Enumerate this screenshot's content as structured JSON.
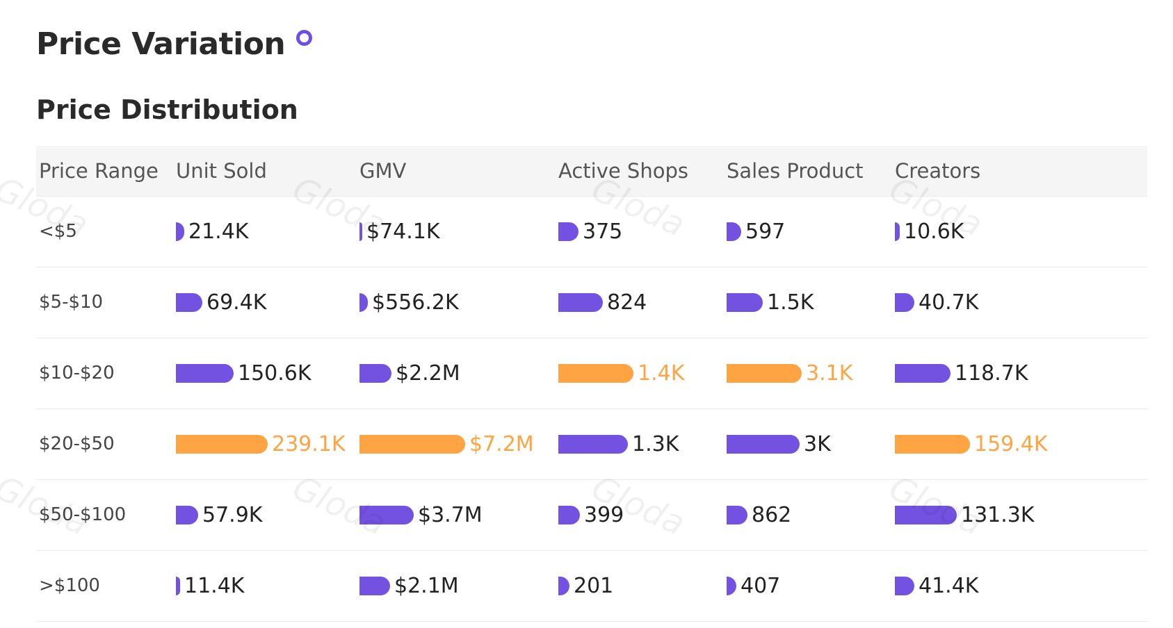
{
  "page": {
    "title": "Price Variation",
    "subtitle": "Price Distribution",
    "watermark": "Gloda"
  },
  "colors": {
    "bar_default": "#7352e2",
    "bar_highlight": "#ffa442",
    "text_highlight": "#ffa442"
  },
  "chart_data": {
    "type": "table",
    "columns": [
      "Price Range",
      "Unit Sold",
      "GMV",
      "Active Shops",
      "Sales Product",
      "Creators"
    ],
    "categories": [
      "<$5",
      "$5-$10",
      "$10-$20",
      "$20-$50",
      "$50-$100",
      ">$100"
    ],
    "series": [
      {
        "name": "Unit Sold",
        "values": [
          21400,
          69400,
          150600,
          239100,
          57900,
          11400
        ],
        "labels": [
          "21.4K",
          "69.4K",
          "150.6K",
          "239.1K",
          "57.9K",
          "11.4K"
        ],
        "highlight_index": 3
      },
      {
        "name": "GMV",
        "values": [
          74100,
          556200,
          2200000,
          7200000,
          3700000,
          2100000
        ],
        "labels": [
          "$74.1K",
          "$556.2K",
          "$2.2M",
          "$7.2M",
          "$3.7M",
          "$2.1M"
        ],
        "highlight_index": 3
      },
      {
        "name": "Active Shops",
        "values": [
          375,
          824,
          1400,
          1300,
          399,
          201
        ],
        "labels": [
          "375",
          "824",
          "1.4K",
          "1.3K",
          "399",
          "201"
        ],
        "highlight_index": 2
      },
      {
        "name": "Sales Product",
        "values": [
          597,
          1500,
          3100,
          3000,
          862,
          407
        ],
        "labels": [
          "597",
          "1.5K",
          "3.1K",
          "3K",
          "862",
          "407"
        ],
        "highlight_index": 2
      },
      {
        "name": "Creators",
        "values": [
          10600,
          40700,
          118700,
          159400,
          131300,
          41400
        ],
        "labels": [
          "10.6K",
          "40.7K",
          "118.7K",
          "159.4K",
          "131.3K",
          "41.4K"
        ],
        "highlight_index": 3
      }
    ]
  }
}
